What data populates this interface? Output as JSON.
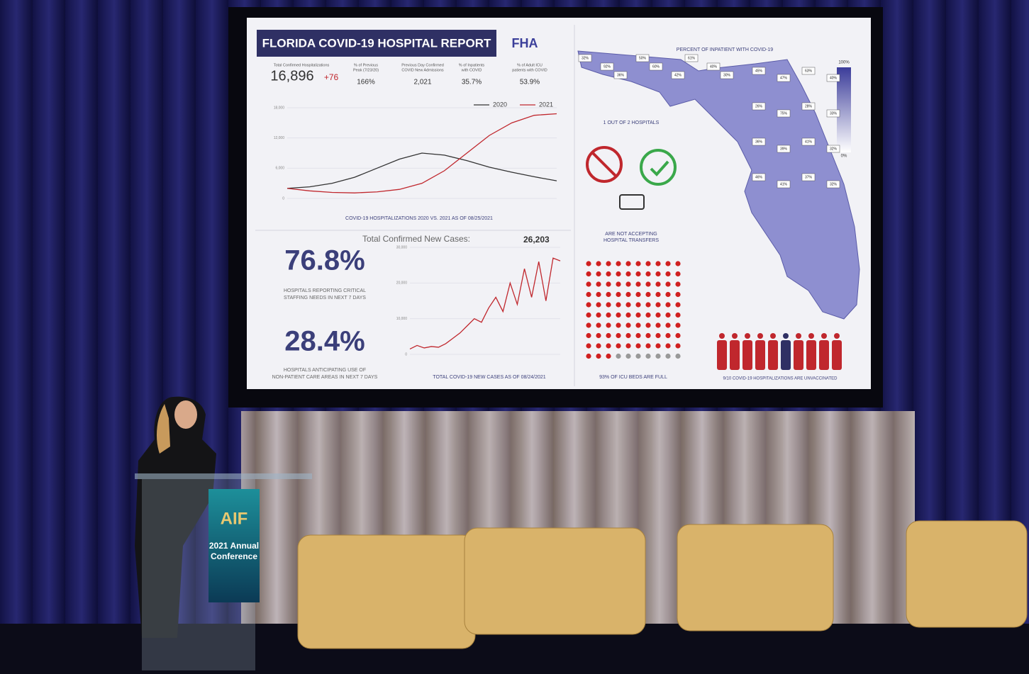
{
  "screen": {
    "title": "FLORIDA COVID-19 HOSPITAL REPORT",
    "logo": "FHA",
    "stats": [
      {
        "label_lines": [
          "Total Confirmed Hospitalizations"
        ],
        "value": "16,896",
        "change": "+76"
      },
      {
        "label_lines": [
          "% of Previous",
          "Peak (7/23/20)"
        ],
        "value": "166%"
      },
      {
        "label_lines": [
          "Previous Day Confirmed",
          "COVID New Admissions"
        ],
        "value": "2,021"
      },
      {
        "label_lines": [
          "% of Inpatients",
          "with COVID"
        ],
        "value": "35.7%"
      },
      {
        "label_lines": [
          "% of Adult ICU",
          "patients with COVID"
        ],
        "value": "53.9%"
      }
    ],
    "hosp_chart": {
      "type": "line",
      "categories": [
        null,
        null,
        null,
        null,
        null,
        null,
        null,
        null,
        null,
        null,
        null,
        null,
        null
      ],
      "series": [
        {
          "name": "2020",
          "color": "#333333",
          "values": [
            2000,
            2300,
            3000,
            4200,
            6000,
            7800,
            9000,
            8600,
            7500,
            6200,
            5200,
            4300,
            3500
          ]
        },
        {
          "name": "2021",
          "color": "#c0272d",
          "values": [
            2000,
            1500,
            1200,
            1100,
            1300,
            1800,
            3000,
            5500,
            9000,
            12500,
            15000,
            16500,
            16800
          ]
        }
      ],
      "ylim": [
        0,
        18000
      ],
      "yticks": [
        0,
        {
          "value": 6000,
          "label": "6,000"
        },
        {
          "value": 12000,
          "label": "12,000"
        },
        {
          "value": 18000,
          "label": "18,000"
        }
      ],
      "caption": "COVID-19 HOSPITALIZATIONS 2020 VS. 2021 AS OF 08/25/2021"
    },
    "staffing": {
      "value": "76.8%",
      "caption_lines": [
        "HOSPITALS REPORTING CRITICAL",
        "STAFFING NEEDS IN NEXT 7 DAYS"
      ]
    },
    "nonpatient": {
      "value": "28.4%",
      "caption_lines": [
        "HOSPITALS ANTICIPATING USE OF",
        "NON-PATIENT CARE AREAS IN NEXT 7 DAYS"
      ]
    },
    "cases_chart": {
      "type": "line",
      "title": "Total Confirmed New Cases:",
      "total": "26,203",
      "categories": [
        null,
        null,
        null,
        null,
        null,
        null,
        null,
        null,
        null,
        null,
        null,
        null,
        null,
        null,
        null,
        null,
        null,
        null,
        null,
        null,
        null,
        null
      ],
      "series": [
        {
          "color": "#c0272d",
          "values": [
            1500,
            2500,
            1800,
            2200,
            2000,
            3000,
            4500,
            6000,
            8000,
            10000,
            9000,
            13000,
            16000,
            12000,
            20000,
            14000,
            24000,
            16000,
            26000,
            15000,
            27000,
            26203
          ]
        }
      ],
      "ylim": [
        0,
        30000
      ],
      "yticks": [
        0,
        {
          "value": 10000,
          "label": "10,000"
        },
        {
          "value": 20000,
          "label": "20,000"
        },
        {
          "value": 30000,
          "label": "30,000"
        }
      ],
      "caption": "TOTAL COVID-19 NEW CASES AS OF 08/24/2021"
    },
    "transfers": {
      "top": "1 OUT OF 2 HOSPITALS",
      "bottom_lines": [
        "ARE NOT ACCEPTING",
        "HOSPITAL TRANSFERS"
      ]
    },
    "icu_caption": "93% OF ICU BEDS ARE FULL",
    "unvaccinated_caption": "9/10 COVID-19 HOSPITALIZATIONS ARE UNVACCINATED",
    "map": {
      "title": "PERCENT OF INPATIENT WITH COVID-19",
      "legend_max": "100%",
      "legend_min": "0%",
      "county_labels": [
        "32%",
        "92%",
        "36%",
        "50%",
        "60%",
        "42%",
        "61%",
        "40%",
        "30%",
        "45%",
        "47%",
        "63%",
        "40%",
        "26%",
        "75%",
        "28%",
        "33%",
        "36%",
        "39%",
        "41%",
        "32%",
        "46%",
        "41%",
        "37%",
        "32%"
      ]
    },
    "podium": {
      "logo": "AIF",
      "lines": [
        "2021 Annual",
        "Conference"
      ]
    }
  }
}
